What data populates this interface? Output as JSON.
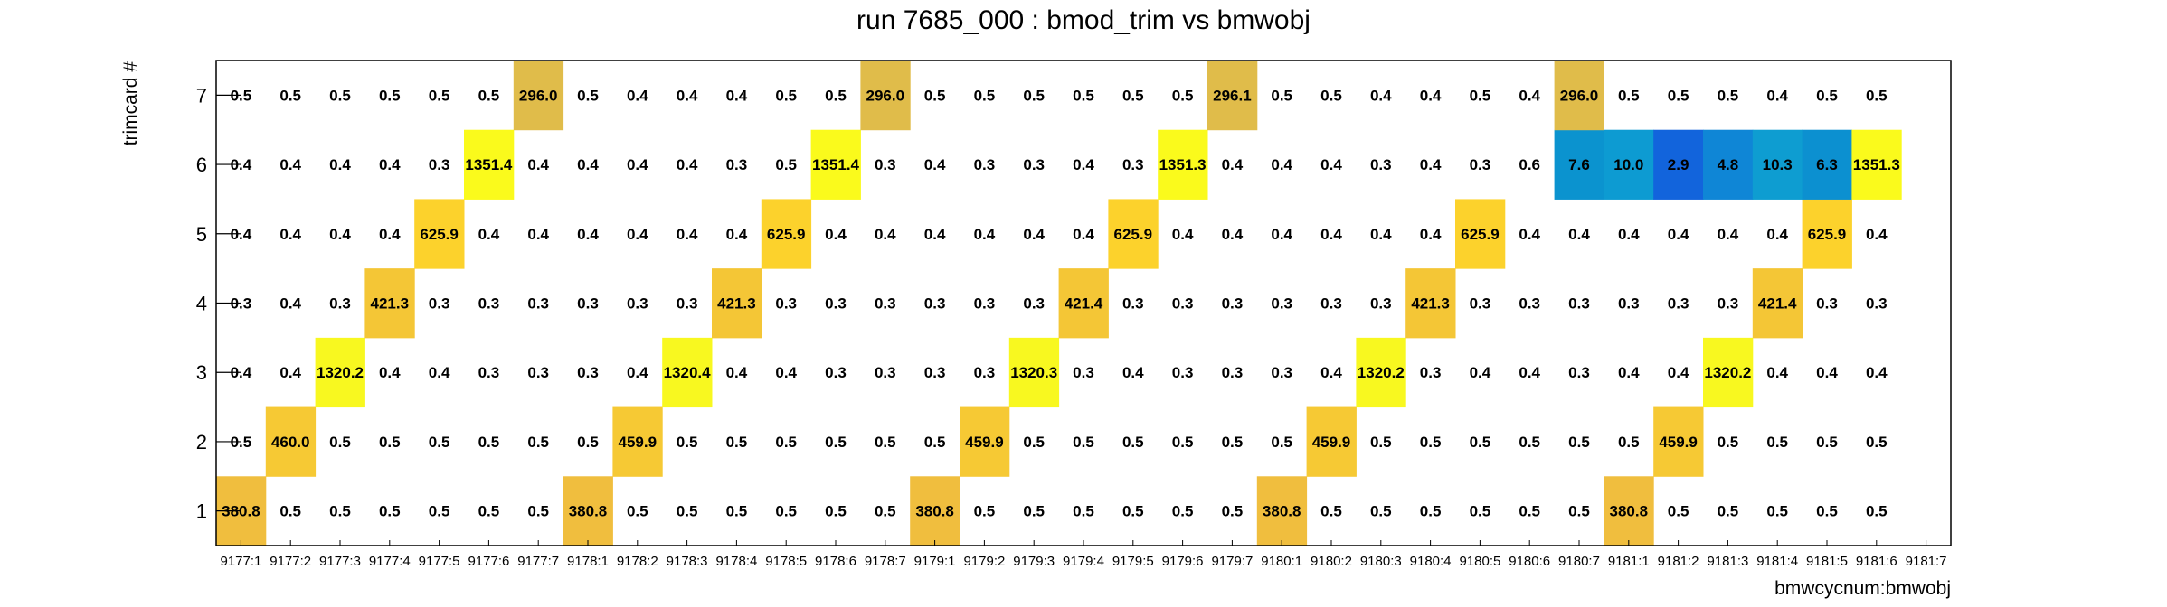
{
  "chart_data": {
    "type": "heatmap",
    "title": "run 7685_000 : bmod_trim vs bmwobj",
    "xlabel": "bmwcycnum:bmwobj",
    "ylabel": "trimcard #",
    "x_categories": [
      "9177:1",
      "9177:2",
      "9177:3",
      "9177:4",
      "9177:5",
      "9177:6",
      "9177:7",
      "9178:1",
      "9178:2",
      "9178:3",
      "9178:4",
      "9178:5",
      "9178:6",
      "9178:7",
      "9179:1",
      "9179:2",
      "9179:3",
      "9179:4",
      "9179:5",
      "9179:6",
      "9179:7",
      "9180:1",
      "9180:2",
      "9180:3",
      "9180:4",
      "9180:5",
      "9180:6",
      "9180:7",
      "9181:1",
      "9181:2",
      "9181:3",
      "9181:4",
      "9181:5",
      "9181:6",
      "9181:7"
    ],
    "y_categories": [
      "1",
      "2",
      "3",
      "4",
      "5",
      "6",
      "7"
    ],
    "rows": {
      "1": [
        "380.8",
        "0.5",
        "0.5",
        "0.5",
        "0.5",
        "0.5",
        "0.5",
        "380.8",
        "0.5",
        "0.5",
        "0.5",
        "0.5",
        "0.5",
        "0.5",
        "380.8",
        "0.5",
        "0.5",
        "0.5",
        "0.5",
        "0.5",
        "0.5",
        "380.8",
        "0.5",
        "0.5",
        "0.5",
        "0.5",
        "0.5",
        "0.5",
        "380.8",
        "0.5",
        "0.5",
        "0.5",
        "0.5",
        "0.5",
        ""
      ],
      "2": [
        "0.5",
        "460.0",
        "0.5",
        "0.5",
        "0.5",
        "0.5",
        "0.5",
        "0.5",
        "459.9",
        "0.5",
        "0.5",
        "0.5",
        "0.5",
        "0.5",
        "0.5",
        "459.9",
        "0.5",
        "0.5",
        "0.5",
        "0.5",
        "0.5",
        "0.5",
        "459.9",
        "0.5",
        "0.5",
        "0.5",
        "0.5",
        "0.5",
        "0.5",
        "459.9",
        "0.5",
        "0.5",
        "0.5",
        "0.5",
        ""
      ],
      "3": [
        "0.4",
        "0.4",
        "1320.2",
        "0.4",
        "0.4",
        "0.3",
        "0.3",
        "0.3",
        "0.4",
        "1320.4",
        "0.4",
        "0.4",
        "0.3",
        "0.3",
        "0.3",
        "0.3",
        "1320.3",
        "0.3",
        "0.4",
        "0.3",
        "0.3",
        "0.3",
        "0.4",
        "1320.2",
        "0.3",
        "0.4",
        "0.4",
        "0.3",
        "0.4",
        "0.4",
        "1320.2",
        "0.4",
        "0.4",
        "0.4",
        ""
      ],
      "4": [
        "0.3",
        "0.4",
        "0.3",
        "421.3",
        "0.3",
        "0.3",
        "0.3",
        "0.3",
        "0.3",
        "0.3",
        "421.3",
        "0.3",
        "0.3",
        "0.3",
        "0.3",
        "0.3",
        "0.3",
        "421.4",
        "0.3",
        "0.3",
        "0.3",
        "0.3",
        "0.3",
        "0.3",
        "421.3",
        "0.3",
        "0.3",
        "0.3",
        "0.3",
        "0.3",
        "0.3",
        "421.4",
        "0.3",
        "0.3",
        ""
      ],
      "5": [
        "0.4",
        "0.4",
        "0.4",
        "0.4",
        "625.9",
        "0.4",
        "0.4",
        "0.4",
        "0.4",
        "0.4",
        "0.4",
        "625.9",
        "0.4",
        "0.4",
        "0.4",
        "0.4",
        "0.4",
        "0.4",
        "625.9",
        "0.4",
        "0.4",
        "0.4",
        "0.4",
        "0.4",
        "0.4",
        "625.9",
        "0.4",
        "0.4",
        "0.4",
        "0.4",
        "0.4",
        "0.4",
        "625.9",
        "0.4",
        ""
      ],
      "6": [
        "0.4",
        "0.4",
        "0.4",
        "0.4",
        "0.3",
        "1351.4",
        "0.4",
        "0.4",
        "0.4",
        "0.4",
        "0.3",
        "0.5",
        "1351.4",
        "0.3",
        "0.4",
        "0.3",
        "0.3",
        "0.4",
        "0.3",
        "1351.3",
        "0.4",
        "0.4",
        "0.4",
        "0.3",
        "0.4",
        "0.3",
        "0.6",
        "7.6",
        "10.0",
        "2.9",
        "4.8",
        "10.3",
        "6.3",
        "1351.3",
        ""
      ],
      "7": [
        "0.5",
        "0.5",
        "0.5",
        "0.5",
        "0.5",
        "0.5",
        "296.0",
        "0.5",
        "0.4",
        "0.4",
        "0.4",
        "0.5",
        "0.5",
        "296.0",
        "0.5",
        "0.5",
        "0.5",
        "0.5",
        "0.5",
        "0.5",
        "296.1",
        "0.5",
        "0.5",
        "0.4",
        "0.4",
        "0.5",
        "0.4",
        "296.0",
        "0.5",
        "0.5",
        "0.5",
        "0.4",
        "0.5",
        "0.5",
        ""
      ]
    },
    "colors": {
      "296.0": "#e0bc4a",
      "296.1": "#e0bc4a",
      "380.8": "#f0be3e",
      "421.3": "#f4c636",
      "421.4": "#f4c636",
      "459.9": "#f6c934",
      "460.0": "#f6c934",
      "625.9": "#fcd22c",
      "1320.2": "#f8f820",
      "1320.3": "#f8f820",
      "1320.4": "#f8f820",
      "1351.3": "#fafa1c",
      "1351.4": "#fafa1c",
      "7.6": "#0b93cf",
      "10.0": "#0d9bd2",
      "2.9": "#1264dc",
      "4.8": "#0f86d6",
      "10.3": "#0e9dd1",
      "6.3": "#0c90d0"
    },
    "grid": false
  }
}
